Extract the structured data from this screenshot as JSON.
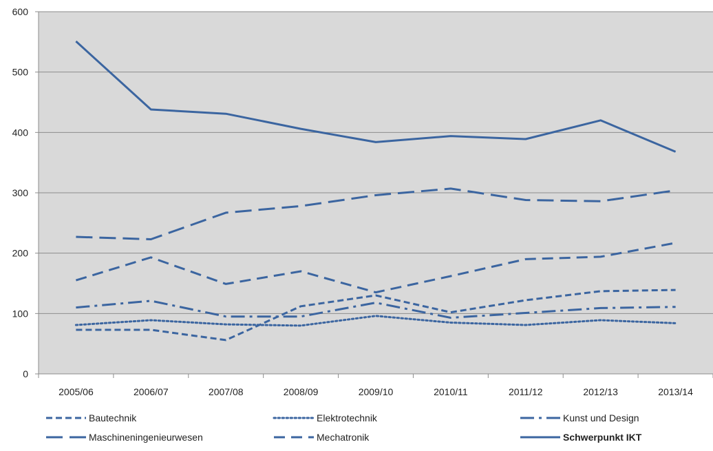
{
  "chart_data": {
    "type": "line",
    "title": "",
    "xlabel": "",
    "ylabel": "",
    "ylim": [
      0,
      600
    ],
    "yticks": [
      0,
      100,
      200,
      300,
      400,
      500,
      600
    ],
    "grid": "horizontal",
    "plot_background": "#d9d9d9",
    "line_color": "#3b65a0",
    "legend_position": "bottom",
    "categories": [
      "2005/06",
      "2006/07",
      "2007/08",
      "2008/09",
      "2009/10",
      "2010/11",
      "2011/12",
      "2012/13",
      "2013/14"
    ],
    "series": [
      {
        "name": "Bautechnik",
        "dash": "short-dash",
        "bold": false,
        "values": [
          73,
          73,
          56,
          112,
          130,
          102,
          122,
          137,
          139
        ]
      },
      {
        "name": "Elektrotechnik",
        "dash": "dot",
        "bold": false,
        "values": [
          81,
          89,
          82,
          80,
          96,
          85,
          81,
          89,
          84
        ]
      },
      {
        "name": "Kunst und Design",
        "dash": "dash-dot",
        "bold": false,
        "values": [
          110,
          121,
          95,
          95,
          118,
          93,
          101,
          109,
          111
        ]
      },
      {
        "name": "Maschineningenieurwesen",
        "dash": "long-dash",
        "bold": false,
        "values": [
          227,
          223,
          267,
          278,
          296,
          307,
          288,
          286,
          304
        ]
      },
      {
        "name": "Mechatronik",
        "dash": "dash",
        "bold": false,
        "values": [
          155,
          193,
          149,
          170,
          135,
          162,
          190,
          194,
          217
        ]
      },
      {
        "name": "Schwerpunkt IKT",
        "dash": "solid",
        "bold": true,
        "values": [
          551,
          438,
          431,
          406,
          384,
          394,
          389,
          420,
          368
        ]
      }
    ]
  }
}
